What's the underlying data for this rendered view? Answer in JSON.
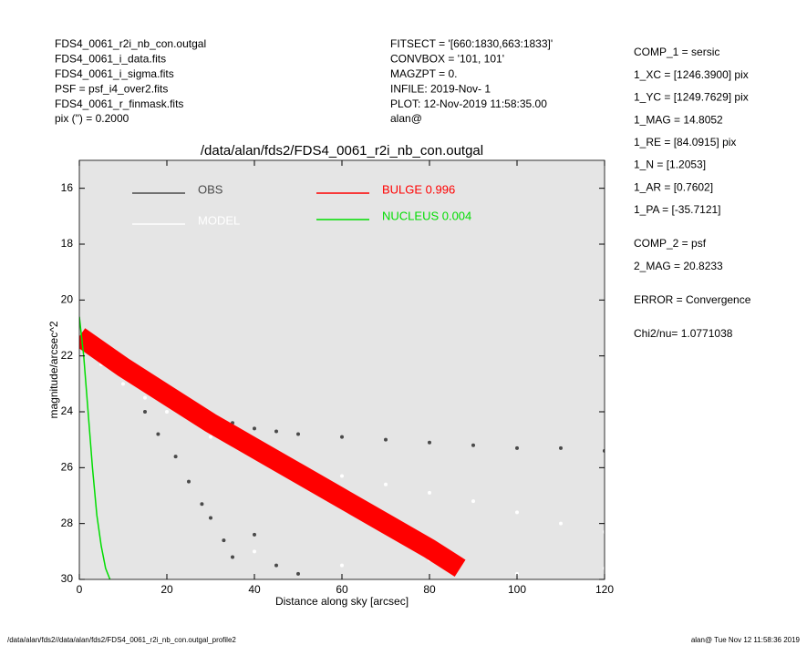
{
  "header": {
    "left": [
      "FDS4_0061_r2i_nb_con.outgal",
      "FDS4_0061_i_data.fits",
      "FDS4_0061_i_sigma.fits",
      "PSF     = psf_i4_over2.fits",
      "FDS4_0061_r_finmask.fits",
      "pix (\") =  0.2000"
    ],
    "middle": [
      "FITSECT = '[660:1830,663:1833]'",
      "CONVBOX = '101, 101'",
      "MAGZPT  =              0.",
      "INFILE: 2019-Nov- 1",
      "PLOT: 12-Nov-2019 11:58:35.00",
      "alan@"
    ],
    "right": [
      "COMP_1  = sersic",
      "1_XC    = [1246.3900] pix",
      "1_YC    = [1249.7629] pix",
      "1_MAG   = 14.8052",
      "1_RE    = [84.0915] pix",
      "1_N     = [1.2053]",
      "1_AR    = [0.7602]",
      "1_PA    = [-35.7121]",
      "COMP_2  = psf",
      "2_MAG   = 20.8233",
      "ERROR   = Convergence",
      "Chi2/nu=       1.0771038"
    ]
  },
  "footer": {
    "left": "/data/alan/fds2//data/alan/fds2/FDS4_0061_r2i_nb_con.outgal_profile2",
    "right": "alan@  Tue Nov 12 11:58:36 2019"
  },
  "chart_data": {
    "type": "scatter",
    "title": "/data/alan/fds2/FDS4_0061_r2i_nb_con.outgal",
    "x_label": "Distance along sky [arcsec]",
    "y_label": "magnitude/arcsec^2",
    "xlim": [
      0,
      120
    ],
    "xticks": [
      0,
      20,
      40,
      60,
      80,
      100,
      120
    ],
    "ylim": [
      30,
      15
    ],
    "yticks": [
      16,
      18,
      20,
      22,
      24,
      26,
      28,
      30
    ],
    "background": "#e5e5e5",
    "series": [
      {
        "name": "OBS",
        "color": "#4a4a4a",
        "style": "points",
        "x": [
          1,
          2,
          3,
          5,
          7,
          10,
          12,
          15,
          18,
          20,
          25,
          30,
          35,
          40,
          45,
          50,
          60,
          70,
          80,
          90,
          100,
          110,
          120,
          15,
          18,
          22,
          25,
          28,
          30,
          33,
          35,
          40,
          45,
          50
        ],
        "y": [
          21.4,
          21.6,
          21.8,
          22.0,
          22.2,
          22.5,
          22.7,
          23.0,
          23.3,
          23.5,
          23.9,
          24.2,
          24.4,
          24.6,
          24.7,
          24.8,
          24.9,
          25.0,
          25.1,
          25.2,
          25.3,
          25.3,
          25.4,
          24.0,
          24.8,
          25.6,
          26.5,
          27.3,
          27.8,
          28.6,
          29.2,
          28.4,
          29.5,
          29.8
        ]
      },
      {
        "name": "MODEL",
        "color": "#ffffff",
        "style": "points",
        "x": [
          5,
          10,
          15,
          20,
          30,
          40,
          50,
          60,
          70,
          80,
          90,
          100,
          110,
          120,
          40,
          60,
          80,
          100,
          120
        ],
        "y": [
          22.3,
          23.0,
          23.5,
          24.0,
          24.9,
          25.6,
          26.0,
          26.3,
          26.6,
          26.9,
          27.2,
          27.6,
          28.0,
          28.3,
          29.0,
          29.5,
          29.3,
          29.8,
          29.6
        ]
      },
      {
        "name": "BULGE  0.996",
        "color": "#ff0000",
        "style": "band",
        "x": [
          0,
          10,
          20,
          30,
          40,
          50,
          60,
          70,
          80,
          87
        ],
        "y": [
          21.3,
          22.4,
          23.4,
          24.4,
          25.3,
          26.2,
          27.1,
          28.0,
          28.9,
          29.6
        ]
      },
      {
        "name": "NUCLEUS  0.004",
        "color": "#00dd00",
        "style": "line",
        "x": [
          0,
          1,
          2,
          3,
          4,
          5,
          6,
          7
        ],
        "y": [
          20.6,
          22.0,
          24.0,
          26.0,
          27.7,
          28.8,
          29.6,
          30
        ]
      }
    ]
  }
}
